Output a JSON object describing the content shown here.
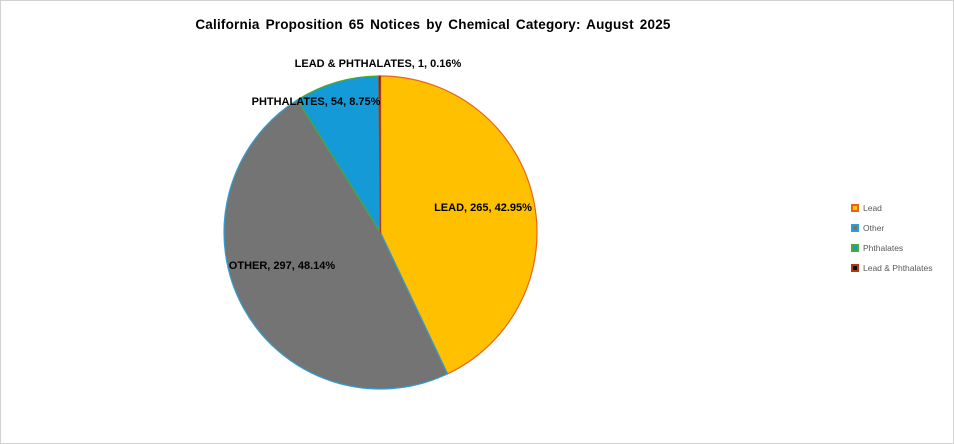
{
  "title": "California Proposition 65 Notices by Chemical Category: August 2025",
  "chart_data": {
    "type": "pie",
    "title": "California Proposition 65 Notices by Chemical Category: August 2025",
    "total": 617,
    "start_angle_deg": 0,
    "direction": "clockwise",
    "grid": false,
    "legend_position": "right",
    "slices": [
      {
        "name": "Lead",
        "value": 265,
        "percent": 42.95,
        "fill": "#FFC000",
        "border": "#E8641B",
        "data_label": "LEAD, 265, 42.95%"
      },
      {
        "name": "Other",
        "value": 297,
        "percent": 48.14,
        "fill": "#747474",
        "border": "#2E9FD4",
        "data_label": "OTHER, 297, 48.14%"
      },
      {
        "name": "Phthalates",
        "value": 54,
        "percent": 8.75,
        "fill": "#149BD7",
        "border": "#4EA72E",
        "data_label": "PHTHALATES, 54, 8.75%"
      },
      {
        "name": "Lead & Phthalates",
        "value": 1,
        "percent": 0.16,
        "fill": "#0D0D0D",
        "border": "#B23A12",
        "data_label": "LEAD & PHTHALATES, 1, 0.16%"
      }
    ],
    "legend": {
      "items": [
        "Lead",
        "Other",
        "Phthalates",
        "Lead & Phthalates"
      ]
    }
  }
}
